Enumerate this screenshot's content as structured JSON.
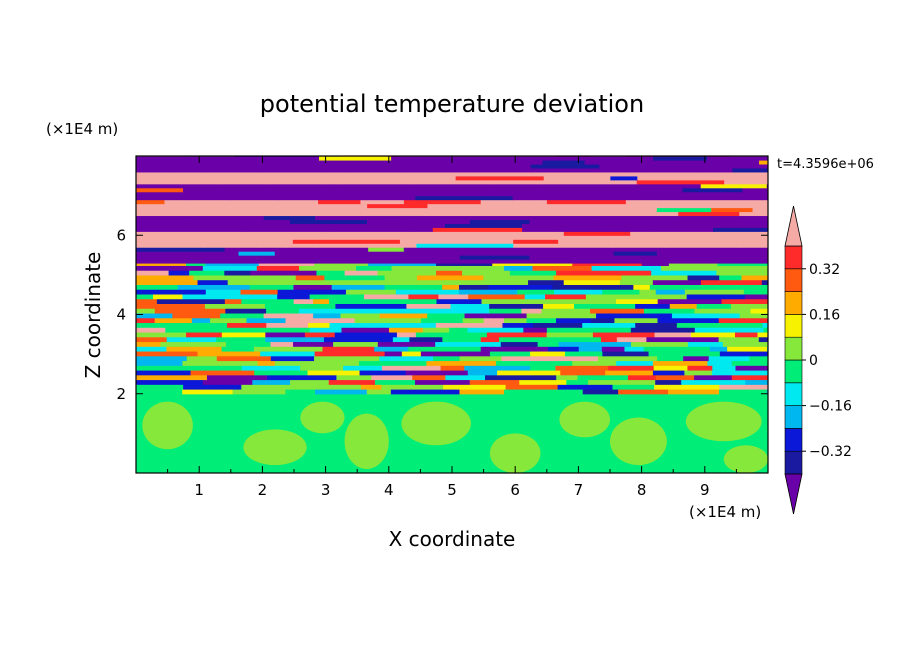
{
  "chart_data": {
    "type": "heatmap",
    "title": "potential temperature deviation",
    "xlabel": "X coordinate",
    "ylabel": "Z coordinate",
    "x_unit": "(×1E4 m)",
    "y_unit": "(×1E4 m)",
    "time_label": "t=4.3596e+06",
    "xlim": [
      0,
      10
    ],
    "ylim": [
      0,
      8
    ],
    "x_ticks": [
      "1",
      "2",
      "3",
      "4",
      "5",
      "6",
      "7",
      "8",
      "9"
    ],
    "y_ticks": [
      "2",
      "4",
      "6"
    ],
    "colorbar": {
      "labels": [
        "0.32",
        "0.16",
        "0",
        "−0.16",
        "−0.32"
      ],
      "label_values": [
        0.32,
        0.16,
        0,
        -0.16,
        -0.32
      ],
      "levels": [
        -0.4,
        -0.32,
        -0.24,
        -0.16,
        -0.08,
        0,
        0.08,
        0.16,
        0.24,
        0.32,
        0.4
      ],
      "colors": [
        "#6a00a8",
        "#1a1aa0",
        "#0b18d8",
        "#00b7ef",
        "#00e8f0",
        "#00ee78",
        "#86e83a",
        "#f7f300",
        "#ffab00",
        "#ff5a10",
        "#ff2a2a",
        "#f5aaa5"
      ]
    },
    "regions": [
      {
        "z_range": [
          0,
          2
        ],
        "description": "near-zero values with weak positive patches",
        "values": [
          0,
          0.08
        ]
      },
      {
        "z_range": [
          2,
          5.3
        ],
        "description": "small-scale mixed positive/negative anomalies",
        "values": [
          -0.4,
          0.4
        ]
      },
      {
        "z_range": [
          5.3,
          8
        ],
        "description": "alternating strong positive/negative horizontal layers",
        "values": [
          -0.4,
          0.4
        ]
      }
    ]
  }
}
